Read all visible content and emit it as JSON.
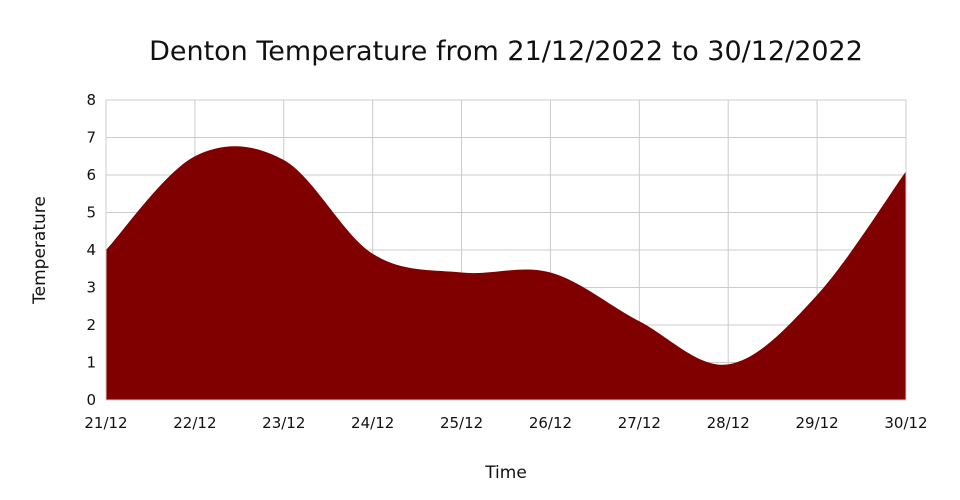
{
  "chart_data": {
    "type": "area",
    "title": "Denton Temperature from 21/12/2022 to 30/12/2022",
    "xlabel": "Time",
    "ylabel": "Temperature",
    "categories": [
      "21/12",
      "22/12",
      "23/12",
      "24/12",
      "25/12",
      "26/12",
      "27/12",
      "28/12",
      "29/12",
      "30/12"
    ],
    "values": [
      4.0,
      6.5,
      6.4,
      3.9,
      3.4,
      3.4,
      2.1,
      0.95,
      2.8,
      6.1
    ],
    "ylim": [
      0,
      8
    ],
    "yticks": [
      "0",
      "1",
      "2",
      "3",
      "4",
      "5",
      "6",
      "7",
      "8"
    ],
    "grid": true,
    "fill_color": "#800000"
  }
}
